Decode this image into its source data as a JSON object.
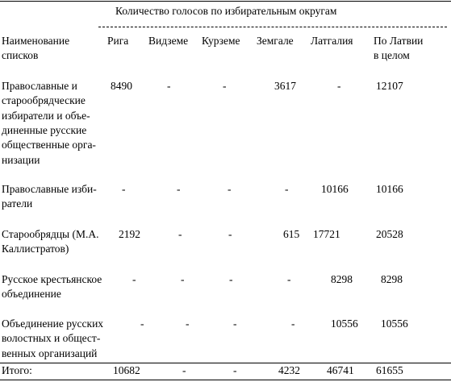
{
  "table": {
    "group_title": "Количество голосов по избирательным округам",
    "header": {
      "label": [
        "Наименование",
        "списков"
      ],
      "columns": [
        [
          "Рига"
        ],
        [
          "Видземе"
        ],
        [
          "Курземе"
        ],
        [
          "Земгале"
        ],
        [
          "Латгалия"
        ],
        [
          "По Латвии",
          "в целом"
        ]
      ]
    },
    "rows": [
      {
        "label": [
          "Православные и",
          "старообрядческие",
          "избиратели и объе-",
          "диненные русские",
          "общественные орга-",
          "низации"
        ],
        "cells": [
          "8490",
          "-",
          "-",
          "3617",
          "-",
          "12107"
        ]
      },
      {
        "label": [
          "Православные изби-",
          "ратели"
        ],
        "cells": [
          "-",
          "-",
          "-",
          "-",
          "10166",
          "10166"
        ]
      },
      {
        "label": [
          "Старообрядцы (М.А.",
          "Каллистратов)"
        ],
        "cells": [
          "2192",
          "-",
          "-",
          "615",
          "17721",
          "20528"
        ]
      },
      {
        "label": [
          "Русское крестьянское",
          "объединение"
        ],
        "cells": [
          "-",
          "-",
          "-",
          "-",
          "8298",
          "8298"
        ]
      },
      {
        "label": [
          "Объединение русских",
          "волостных и общест-",
          "венных организаций"
        ],
        "cells": [
          "-",
          "-",
          "-",
          "-",
          "10556",
          "10556"
        ]
      }
    ],
    "total": {
      "label": "Итого:",
      "cells": [
        "10682",
        "-",
        "-",
        "4232",
        "46741",
        "61655"
      ]
    }
  }
}
